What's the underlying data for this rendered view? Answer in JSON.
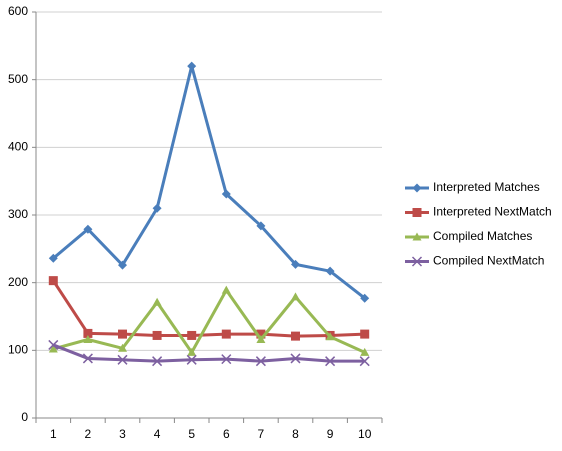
{
  "chart_data": {
    "type": "line",
    "categories": [
      "1",
      "2",
      "3",
      "4",
      "5",
      "6",
      "7",
      "8",
      "9",
      "10"
    ],
    "series": [
      {
        "name": "Interpreted Matches",
        "color": "#4a7ebb",
        "marker": "diamond",
        "values": [
          236,
          279,
          226,
          310,
          520,
          331,
          284,
          227,
          217,
          177
        ]
      },
      {
        "name": "Interpreted NextMatch",
        "color": "#be4b48",
        "marker": "square",
        "values": [
          203,
          125,
          124,
          122,
          122,
          124,
          124,
          121,
          122,
          124
        ]
      },
      {
        "name": "Compiled Matches",
        "color": "#98b954",
        "marker": "triangle",
        "values": [
          102,
          116,
          103,
          171,
          97,
          189,
          116,
          179,
          120,
          97
        ]
      },
      {
        "name": "Compiled NextMatch",
        "color": "#7d60a0",
        "marker": "x",
        "values": [
          108,
          88,
          86,
          84,
          86,
          87,
          84,
          88,
          84,
          84
        ]
      }
    ],
    "ylim": [
      0,
      600
    ],
    "yticks": [
      0,
      100,
      200,
      300,
      400,
      500,
      600
    ],
    "grid": true,
    "legend": "right"
  }
}
